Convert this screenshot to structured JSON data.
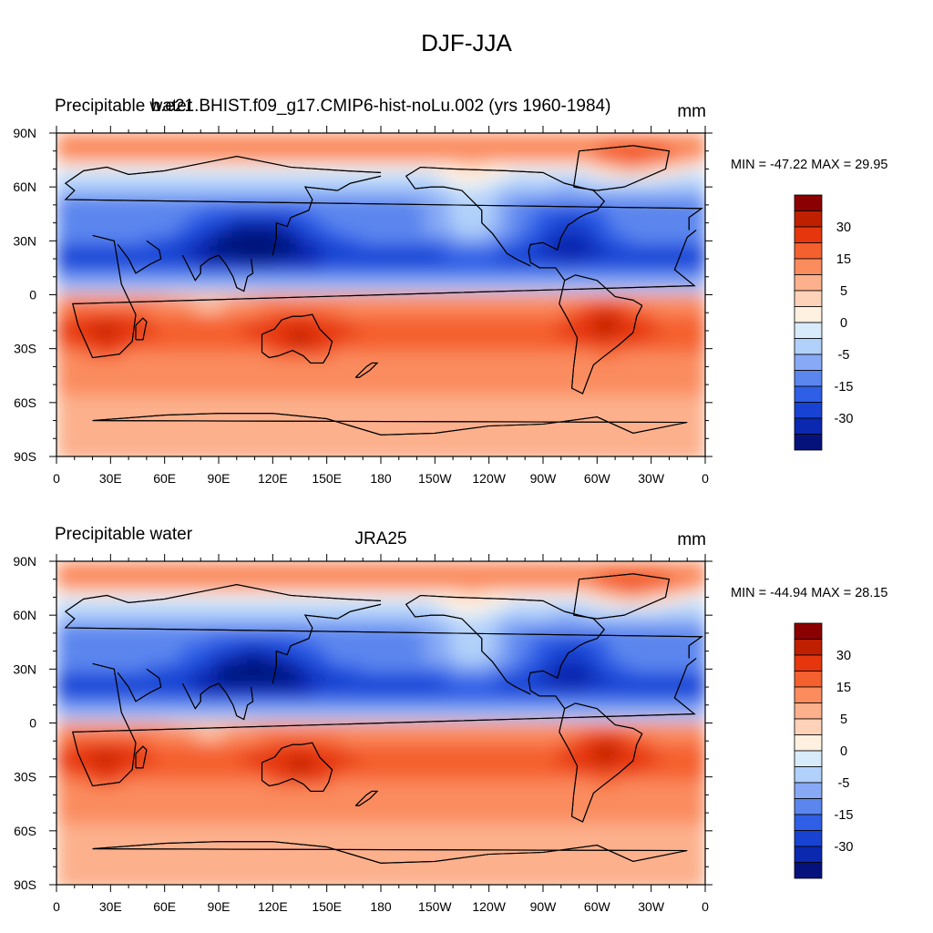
{
  "figure": {
    "title": "DJF-JJA"
  },
  "chart_data": [
    {
      "type": "heatmap",
      "left_title": "Precipitable water",
      "center_title": "b.e21.BHIST.f09_g17.CMIP6-hist-noLu.002 (yrs 1960-1984)",
      "units": "mm",
      "stats": "MIN = -47.22 MAX =  29.95",
      "min": -47.22,
      "max": 29.95,
      "x_ticks": [
        "0",
        "30E",
        "60E",
        "90E",
        "120E",
        "150E",
        "180",
        "150W",
        "120W",
        "90W",
        "60W",
        "30W",
        "0"
      ],
      "y_ticks": [
        "90N",
        "60N",
        "30N",
        "0",
        "30S",
        "60S",
        "90S"
      ],
      "xlim": [
        0,
        360
      ],
      "ylim": [
        -90,
        90
      ]
    },
    {
      "type": "heatmap",
      "left_title": "Precipitable water",
      "center_title": "JRA25",
      "units": "mm",
      "stats": "MIN = -44.94 MAX =  28.15",
      "min": -44.94,
      "max": 28.15,
      "x_ticks": [
        "0",
        "30E",
        "60E",
        "90E",
        "120E",
        "150E",
        "180",
        "150W",
        "120W",
        "90W",
        "60W",
        "30W",
        "0"
      ],
      "y_ticks": [
        "90N",
        "60N",
        "30N",
        "0",
        "30S",
        "60S",
        "90S"
      ],
      "xlim": [
        0,
        360
      ],
      "ylim": [
        -90,
        90
      ]
    }
  ],
  "colorbar": {
    "labels": [
      "30",
      "15",
      "5",
      "0",
      "-5",
      "-15",
      "-30"
    ],
    "colors": [
      "#8b0000",
      "#bf2000",
      "#e5360e",
      "#f5602f",
      "#fa8c5e",
      "#fcb08c",
      "#fdd2b8",
      "#fff0e0",
      "#d7ebfb",
      "#b1d0fa",
      "#88aaf6",
      "#5b86ee",
      "#2f5fe6",
      "#1842d2",
      "#0a28b0",
      "#05127c"
    ]
  }
}
